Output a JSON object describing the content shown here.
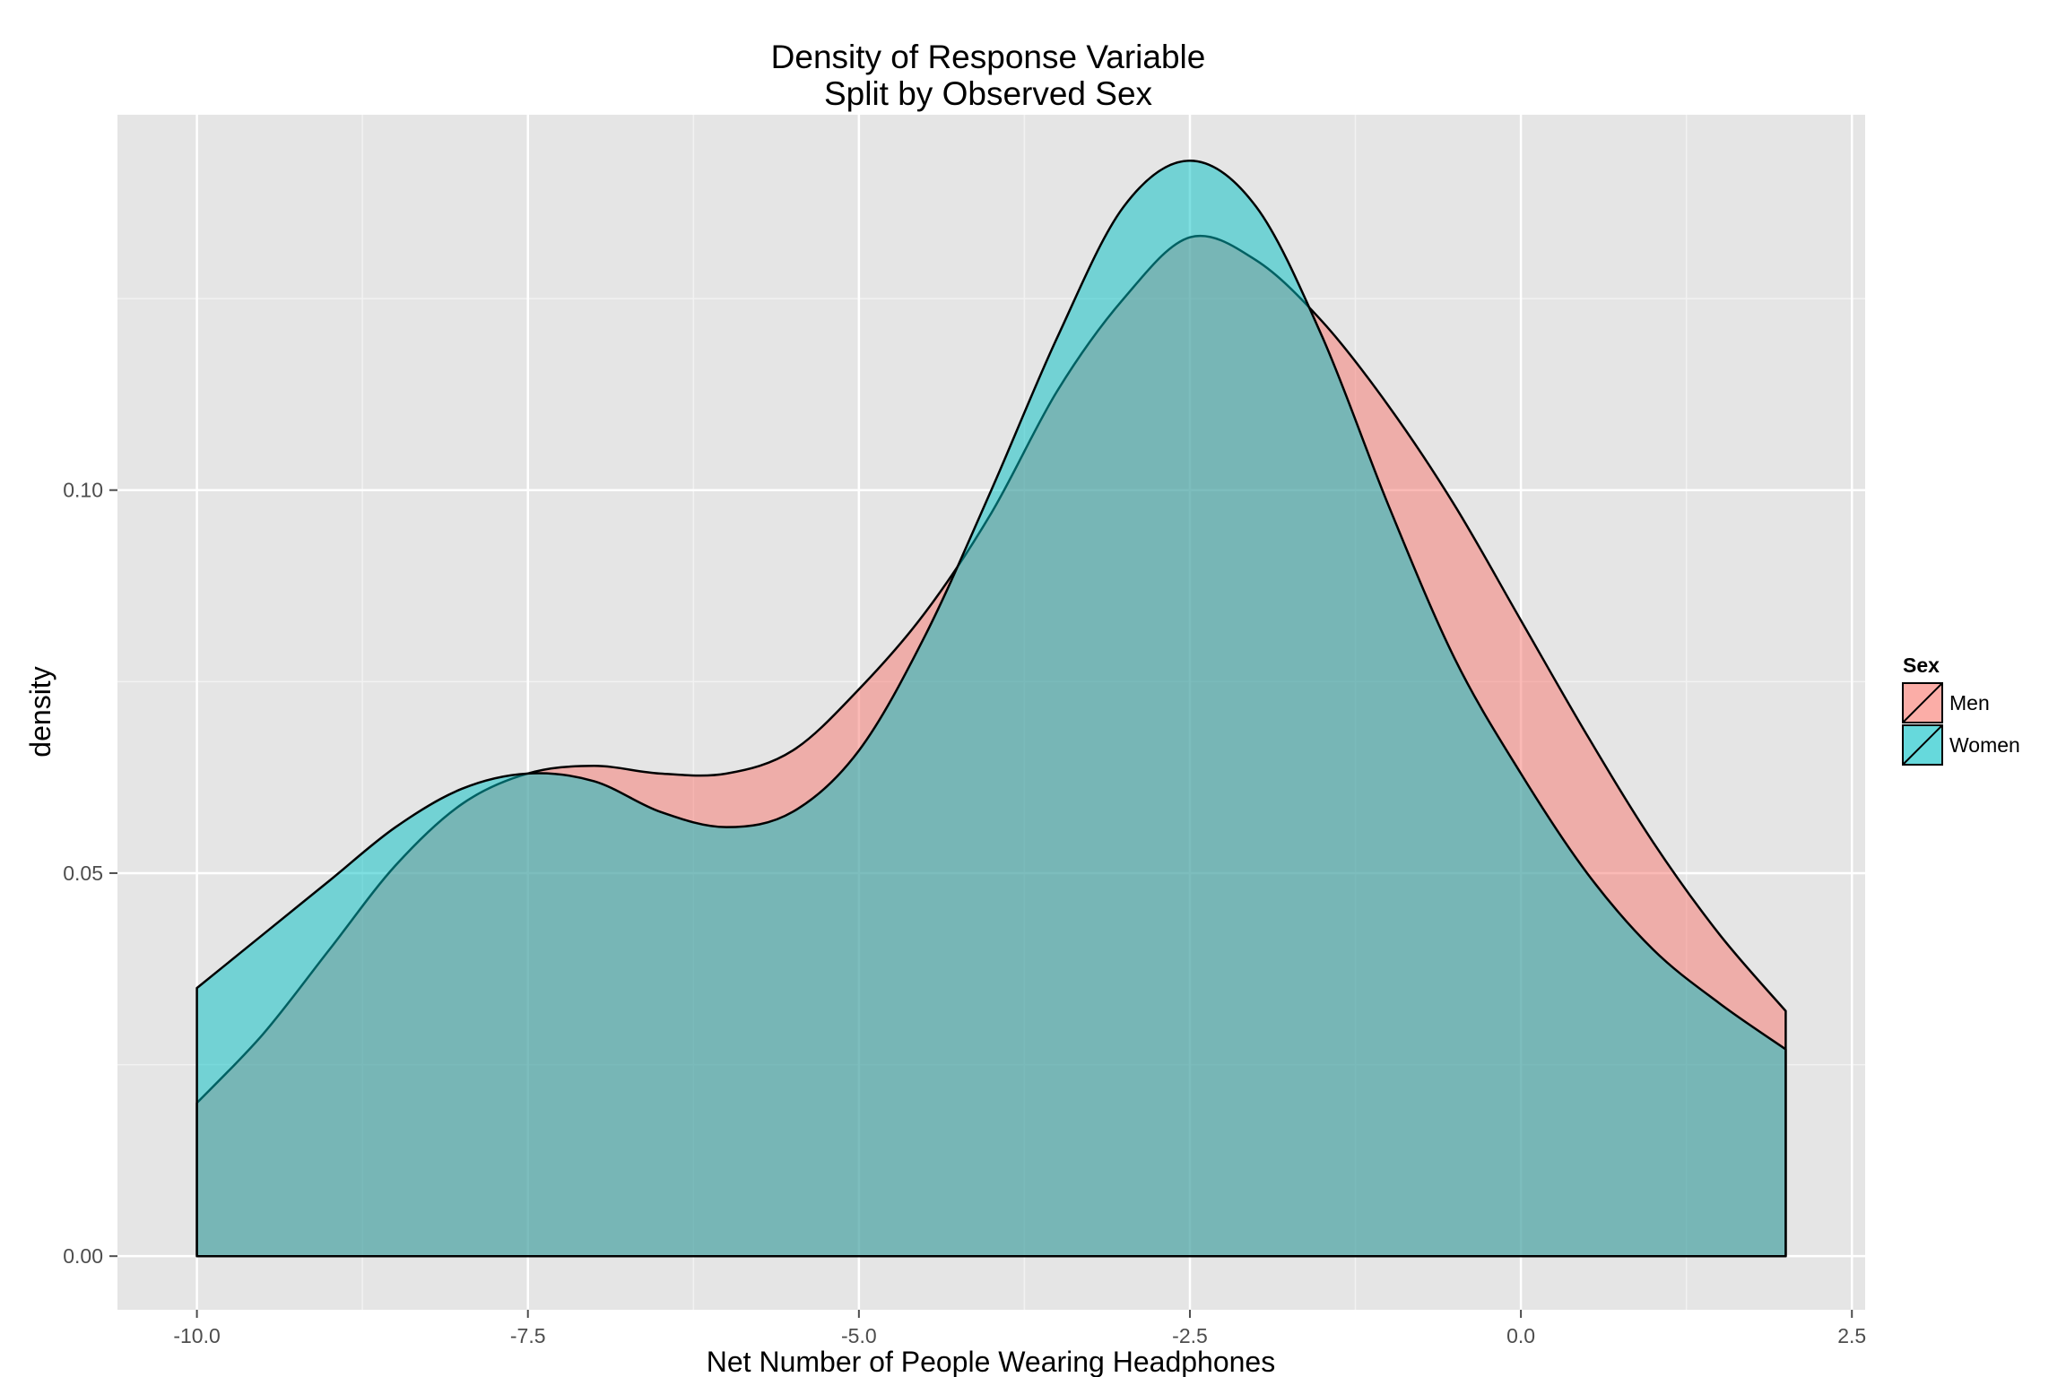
{
  "chart_data": {
    "type": "area",
    "title": "Density of Response Variable",
    "subtitle": "Split by Observed Sex",
    "xlabel": "Net Number of People Wearing Headphones",
    "ylabel": "density",
    "xlim": [
      -10.6,
      2.6
    ],
    "ylim": [
      -0.007,
      0.149
    ],
    "x_ticks": [
      -10.0,
      -7.5,
      -5.0,
      -2.5,
      0.0,
      2.5
    ],
    "x_tick_labels": [
      "-10.0",
      "-7.5",
      "-5.0",
      "-2.5",
      "0.0",
      "2.5"
    ],
    "y_ticks": [
      0.0,
      0.05,
      0.1
    ],
    "y_tick_labels": [
      "0.00",
      "0.05",
      "0.10"
    ],
    "grid": true,
    "legend": {
      "title": "Sex",
      "position": "right"
    },
    "series": [
      {
        "name": "Men",
        "color": "#F8766D",
        "x": [
          -10.0,
          -9.5,
          -9.0,
          -8.5,
          -8.0,
          -7.5,
          -7.0,
          -6.5,
          -6.0,
          -5.5,
          -5.0,
          -4.5,
          -4.0,
          -3.5,
          -3.0,
          -2.5,
          -2.0,
          -1.5,
          -1.0,
          -0.5,
          0.0,
          0.5,
          1.0,
          1.5,
          2.0
        ],
        "y": [
          0.02,
          0.029,
          0.04,
          0.051,
          0.059,
          0.063,
          0.064,
          0.063,
          0.063,
          0.066,
          0.074,
          0.084,
          0.097,
          0.113,
          0.125,
          0.133,
          0.13,
          0.122,
          0.111,
          0.098,
          0.083,
          0.068,
          0.054,
          0.042,
          0.032
        ]
      },
      {
        "name": "Women",
        "color": "#00BFC4",
        "x": [
          -10.0,
          -9.5,
          -9.0,
          -8.5,
          -8.0,
          -7.5,
          -7.0,
          -6.5,
          -6.0,
          -5.5,
          -5.0,
          -4.5,
          -4.0,
          -3.5,
          -3.0,
          -2.5,
          -2.0,
          -1.5,
          -1.0,
          -0.5,
          0.0,
          0.5,
          1.0,
          1.5,
          2.0
        ],
        "y": [
          0.035,
          0.042,
          0.049,
          0.056,
          0.061,
          0.063,
          0.062,
          0.058,
          0.056,
          0.058,
          0.066,
          0.081,
          0.1,
          0.12,
          0.137,
          0.143,
          0.137,
          0.12,
          0.098,
          0.078,
          0.063,
          0.05,
          0.04,
          0.033,
          0.027
        ]
      }
    ]
  }
}
